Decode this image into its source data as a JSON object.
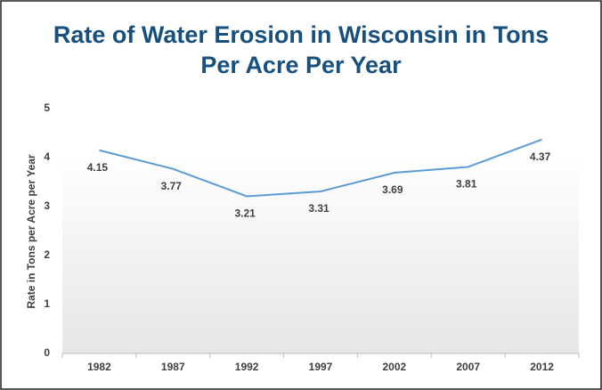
{
  "chart_data": {
    "type": "line",
    "title": "Rate of Water Erosion in Wisconsin in Tons Per Acre Per Year",
    "y_label": "Rate in Tons per Acre per Year",
    "categories": [
      "1982",
      "1987",
      "1992",
      "1997",
      "2002",
      "2007",
      "2012"
    ],
    "values": [
      4.15,
      3.77,
      3.21,
      3.31,
      3.69,
      3.81,
      4.37
    ],
    "color": "#5b9bd5",
    "ylim": [
      0,
      5
    ],
    "yticks": [
      0,
      1,
      2,
      3,
      4,
      5
    ]
  }
}
